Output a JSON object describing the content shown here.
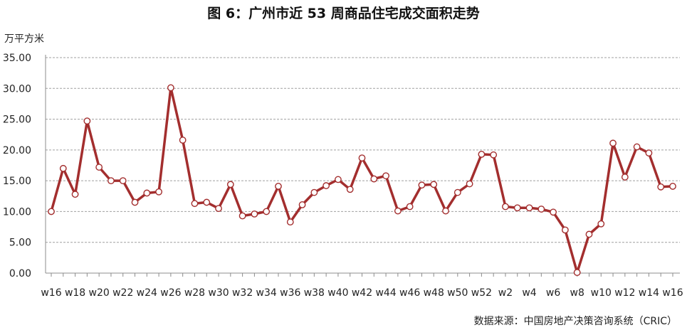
{
  "chart_data": {
    "type": "line",
    "title": "图 6：广州市近 53 周商品住宅成交面积走势",
    "ylabel": "万平方米",
    "xlabel": "",
    "ylim": [
      0,
      35
    ],
    "yticks": [
      "0.00",
      "5.00",
      "10.00",
      "15.00",
      "20.00",
      "25.00",
      "30.00",
      "35.00"
    ],
    "grid": true,
    "legend": "none",
    "x": [
      "w16",
      "w17",
      "w18",
      "w19",
      "w20",
      "w21",
      "w22",
      "w23",
      "w24",
      "w25",
      "w26",
      "w27",
      "w28",
      "w29",
      "w30",
      "w31",
      "w32",
      "w33",
      "w34",
      "w35",
      "w36",
      "w37",
      "w38",
      "w39",
      "w40",
      "w41",
      "w42",
      "w43",
      "w44",
      "w45",
      "w46",
      "w47",
      "w48",
      "w49",
      "w50",
      "w51",
      "w52",
      "w1",
      "w2",
      "w3",
      "w4",
      "w5",
      "w6",
      "w7",
      "w8",
      "w9",
      "w10",
      "w11",
      "w12",
      "w13",
      "w14",
      "w15",
      "w16"
    ],
    "xtick_labels": [
      "w16",
      "",
      "w18",
      "",
      "w20",
      "",
      "w22",
      "",
      "w24",
      "",
      "w26",
      "",
      "w28",
      "",
      "w30",
      "",
      "w32",
      "",
      "w34",
      "",
      "w36",
      "",
      "w38",
      "",
      "w40",
      "",
      "w42",
      "",
      "w44",
      "",
      "w46",
      "",
      "w48",
      "",
      "w50",
      "",
      "w52",
      "",
      "w2",
      "",
      "w4",
      "",
      "w6",
      "",
      "w8",
      "",
      "w10",
      "",
      "w12",
      "",
      "w14",
      "",
      "w16"
    ],
    "series": [
      {
        "values": [
          10.0,
          17.0,
          12.8,
          24.7,
          17.2,
          15.0,
          15.0,
          11.5,
          13.0,
          13.2,
          30.1,
          21.6,
          11.3,
          11.5,
          10.5,
          14.4,
          9.3,
          9.6,
          10.0,
          14.1,
          8.3,
          11.1,
          13.1,
          14.2,
          15.2,
          13.6,
          18.7,
          15.3,
          15.8,
          10.1,
          10.8,
          14.3,
          14.4,
          10.1,
          13.1,
          14.5,
          19.3,
          19.2,
          10.8,
          10.6,
          10.6,
          10.4,
          9.9,
          7.0,
          0.1,
          6.3,
          8.0,
          21.1,
          15.6,
          20.5,
          19.5,
          14.0,
          14.1
        ],
        "color": "#a32e2e"
      }
    ]
  },
  "footer": {
    "source": "数据来源：中国房地产决策咨询系统（CRIC）"
  }
}
